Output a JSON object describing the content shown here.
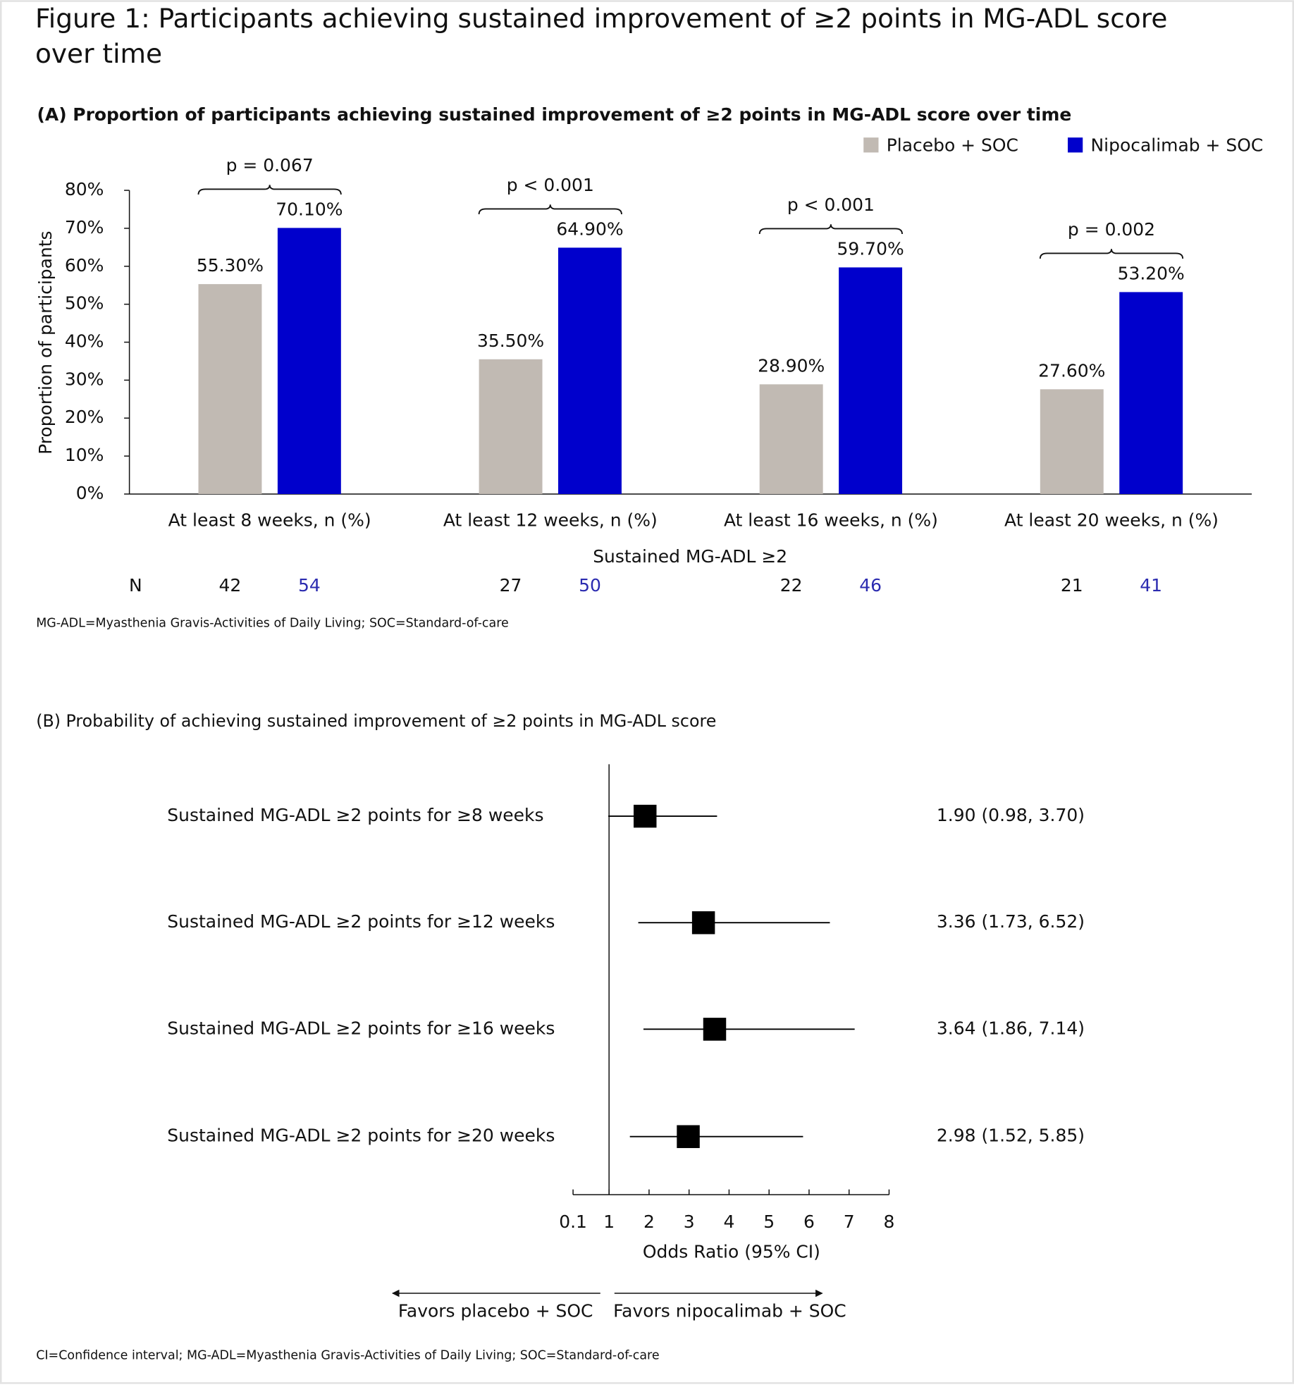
{
  "title": "Figure 1: Participants achieving sustained  improvement of ≥2 points in MG-ADL score over time",
  "chart_data": [
    {
      "type": "bar",
      "title": "(A) Proportion of participants achieving sustained improvement of ≥2 points in MG-ADL score over time",
      "ylabel": "Proportion of participants",
      "xlabel": "Sustained MG-ADL ≥2",
      "categories": [
        "At least 8 weeks, n (%)",
        "At least 12 weeks, n (%)",
        "At least 16 weeks, n (%)",
        "At least 20 weeks, n (%)"
      ],
      "series": [
        {
          "name": "Placebo + SOC",
          "color": "#c1bab3",
          "values": [
            55.3,
            35.5,
            28.9,
            27.6
          ],
          "value_labels": [
            "55.30%",
            "35.50%",
            "28.90%",
            "27.60%"
          ],
          "n": [
            42,
            27,
            22,
            21
          ]
        },
        {
          "name": "Nipocalimab + SOC",
          "color": "#0000cc",
          "values": [
            70.1,
            64.9,
            59.7,
            53.2
          ],
          "value_labels": [
            "70.10%",
            "64.90%",
            "59.70%",
            "53.20%"
          ],
          "n": [
            54,
            50,
            46,
            41
          ]
        }
      ],
      "p_values": [
        "p = 0.067",
        "p < 0.001",
        "p < 0.001",
        "p = 0.002"
      ],
      "n_label": "N",
      "ylim": [
        0,
        80
      ],
      "yticks": [
        {
          "value": 0,
          "label": "0%"
        },
        {
          "value": 10,
          "label": "10%"
        },
        {
          "value": 20,
          "label": "20%"
        },
        {
          "value": 30,
          "label": "30%"
        },
        {
          "value": 40,
          "label": "40%"
        },
        {
          "value": 50,
          "label": "50%"
        },
        {
          "value": 60,
          "label": "60%"
        },
        {
          "value": 70,
          "label": "70%"
        },
        {
          "value": 80,
          "label": "80%"
        }
      ],
      "legend": "top-right",
      "footnote": "MG-ADL=Myasthenia Gravis-Activities of Daily Living; SOC=Standard-of-care"
    },
    {
      "type": "forest",
      "title": "(B) Probability of achieving sustained improvement of ≥2 points in MG-ADL score",
      "categories": [
        "Sustained MG-ADL ≥2 points for ≥8 weeks",
        "Sustained MG-ADL ≥2 points for ≥12 weeks",
        "Sustained MG-ADL ≥2 points for ≥16 weeks",
        "Sustained MG-ADL ≥2 points for ≥20 weeks"
      ],
      "values": [
        1.9,
        3.36,
        3.64,
        2.98
      ],
      "ci_lower": [
        0.98,
        1.73,
        1.86,
        1.52
      ],
      "ci_upper": [
        3.7,
        6.52,
        7.14,
        5.85
      ],
      "value_labels": [
        "1.90 (0.98, 3.70)",
        "3.36 (1.73, 6.52)",
        "3.64 (1.86, 7.14)",
        "2.98 (1.52, 5.85)"
      ],
      "color": "#000000",
      "xlim": [
        0.1,
        8
      ],
      "xticks": [
        0.1,
        1,
        2,
        3,
        4,
        5,
        6,
        7,
        8
      ],
      "reference_line": 1,
      "xlabel": "Odds Ratio (95% CI)",
      "direction_labels": [
        "Favors placebo + SOC",
        "Favors nipocalimab + SOC"
      ],
      "footnote": "CI=Confidence interval; MG-ADL=Myasthenia Gravis-Activities of Daily Living; SOC=Standard-of-care"
    }
  ]
}
